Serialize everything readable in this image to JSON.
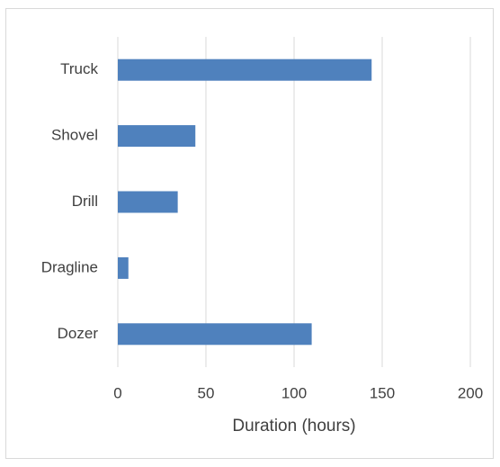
{
  "chart_data": {
    "type": "bar",
    "orientation": "horizontal",
    "x_label": "Duration (hours)",
    "categories": [
      "Truck",
      "Shovel",
      "Drill",
      "Dragline",
      "Dozer"
    ],
    "values": [
      144,
      44,
      34,
      6,
      110
    ],
    "color": "#4f81bd",
    "xlim": [
      0,
      200
    ],
    "xticks": [
      0,
      50,
      100,
      150,
      200
    ],
    "grid": true
  }
}
